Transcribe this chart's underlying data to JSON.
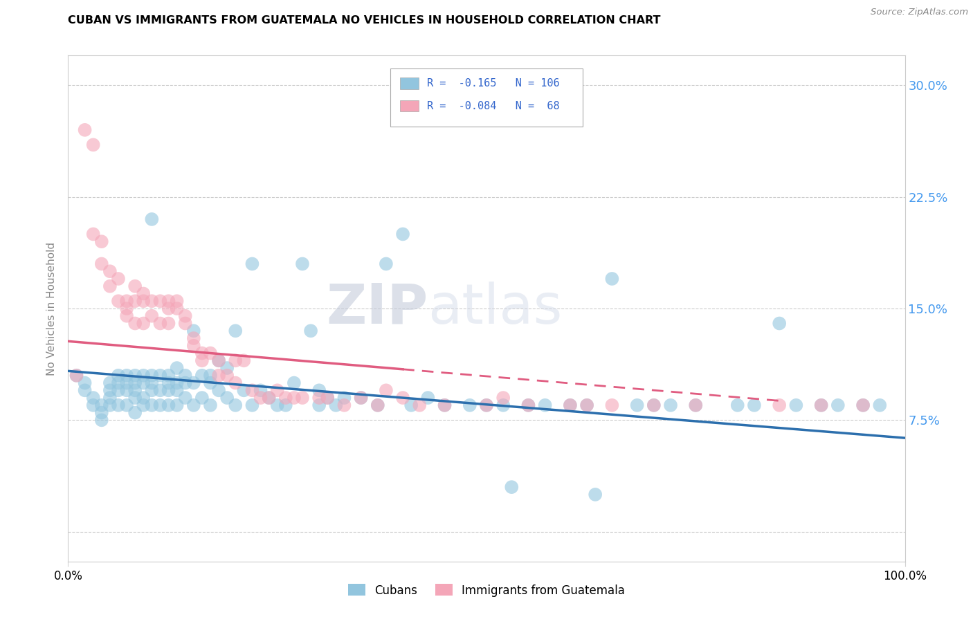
{
  "title": "CUBAN VS IMMIGRANTS FROM GUATEMALA NO VEHICLES IN HOUSEHOLD CORRELATION CHART",
  "source": "Source: ZipAtlas.com",
  "ylabel": "No Vehicles in Household",
  "ytick_vals": [
    0.0,
    0.075,
    0.15,
    0.225,
    0.3
  ],
  "ytick_labels_right": [
    "",
    "7.5%",
    "15.0%",
    "22.5%",
    "30.0%"
  ],
  "xlim": [
    0.0,
    1.0
  ],
  "ylim": [
    -0.02,
    0.32
  ],
  "color_blue": "#92c5de",
  "color_pink": "#f4a6b8",
  "line_blue": "#2c6fad",
  "line_pink": "#e05c80",
  "watermark_zip": "ZIP",
  "watermark_atlas": "atlas",
  "blue_trend_x0": 0.0,
  "blue_trend_x1": 1.0,
  "blue_trend_y0": 0.108,
  "blue_trend_y1": 0.063,
  "pink_trend_x0": 0.0,
  "pink_trend_x1": 0.85,
  "pink_trend_y0": 0.128,
  "pink_trend_y1": 0.088,
  "cubans_x": [
    0.01,
    0.02,
    0.02,
    0.03,
    0.03,
    0.04,
    0.04,
    0.04,
    0.05,
    0.05,
    0.05,
    0.05,
    0.06,
    0.06,
    0.06,
    0.06,
    0.07,
    0.07,
    0.07,
    0.07,
    0.08,
    0.08,
    0.08,
    0.08,
    0.08,
    0.09,
    0.09,
    0.09,
    0.09,
    0.1,
    0.1,
    0.1,
    0.1,
    0.1,
    0.11,
    0.11,
    0.11,
    0.12,
    0.12,
    0.12,
    0.12,
    0.13,
    0.13,
    0.13,
    0.13,
    0.14,
    0.14,
    0.14,
    0.15,
    0.15,
    0.15,
    0.16,
    0.16,
    0.17,
    0.17,
    0.17,
    0.18,
    0.18,
    0.19,
    0.19,
    0.2,
    0.2,
    0.21,
    0.22,
    0.22,
    0.23,
    0.24,
    0.25,
    0.26,
    0.27,
    0.28,
    0.29,
    0.3,
    0.3,
    0.31,
    0.32,
    0.33,
    0.35,
    0.37,
    0.38,
    0.4,
    0.41,
    0.43,
    0.45,
    0.48,
    0.5,
    0.52,
    0.53,
    0.55,
    0.57,
    0.6,
    0.62,
    0.63,
    0.65,
    0.68,
    0.7,
    0.72,
    0.75,
    0.8,
    0.82,
    0.85,
    0.87,
    0.9,
    0.92,
    0.95,
    0.97
  ],
  "cubans_y": [
    0.105,
    0.1,
    0.095,
    0.09,
    0.085,
    0.085,
    0.08,
    0.075,
    0.1,
    0.095,
    0.09,
    0.085,
    0.105,
    0.1,
    0.095,
    0.085,
    0.105,
    0.1,
    0.095,
    0.085,
    0.105,
    0.1,
    0.095,
    0.09,
    0.08,
    0.105,
    0.1,
    0.09,
    0.085,
    0.21,
    0.105,
    0.1,
    0.095,
    0.085,
    0.105,
    0.095,
    0.085,
    0.105,
    0.1,
    0.095,
    0.085,
    0.11,
    0.1,
    0.095,
    0.085,
    0.105,
    0.1,
    0.09,
    0.135,
    0.1,
    0.085,
    0.105,
    0.09,
    0.105,
    0.1,
    0.085,
    0.115,
    0.095,
    0.11,
    0.09,
    0.135,
    0.085,
    0.095,
    0.18,
    0.085,
    0.095,
    0.09,
    0.085,
    0.085,
    0.1,
    0.18,
    0.135,
    0.095,
    0.085,
    0.09,
    0.085,
    0.09,
    0.09,
    0.085,
    0.18,
    0.2,
    0.085,
    0.09,
    0.085,
    0.085,
    0.085,
    0.085,
    0.03,
    0.085,
    0.085,
    0.085,
    0.085,
    0.025,
    0.17,
    0.085,
    0.085,
    0.085,
    0.085,
    0.085,
    0.085,
    0.14,
    0.085,
    0.085,
    0.085,
    0.085,
    0.085
  ],
  "guatemala_x": [
    0.01,
    0.02,
    0.03,
    0.03,
    0.04,
    0.04,
    0.05,
    0.05,
    0.06,
    0.06,
    0.07,
    0.07,
    0.07,
    0.08,
    0.08,
    0.08,
    0.09,
    0.09,
    0.09,
    0.1,
    0.1,
    0.11,
    0.11,
    0.12,
    0.12,
    0.12,
    0.13,
    0.13,
    0.14,
    0.14,
    0.15,
    0.15,
    0.16,
    0.16,
    0.17,
    0.18,
    0.18,
    0.19,
    0.2,
    0.2,
    0.21,
    0.22,
    0.23,
    0.24,
    0.25,
    0.26,
    0.27,
    0.28,
    0.3,
    0.31,
    0.33,
    0.35,
    0.37,
    0.38,
    0.4,
    0.42,
    0.45,
    0.5,
    0.52,
    0.55,
    0.6,
    0.62,
    0.65,
    0.7,
    0.75,
    0.85,
    0.9,
    0.95
  ],
  "guatemala_y": [
    0.105,
    0.27,
    0.26,
    0.2,
    0.195,
    0.18,
    0.175,
    0.165,
    0.17,
    0.155,
    0.155,
    0.15,
    0.145,
    0.165,
    0.155,
    0.14,
    0.16,
    0.155,
    0.14,
    0.155,
    0.145,
    0.155,
    0.14,
    0.155,
    0.15,
    0.14,
    0.155,
    0.15,
    0.145,
    0.14,
    0.13,
    0.125,
    0.12,
    0.115,
    0.12,
    0.105,
    0.115,
    0.105,
    0.115,
    0.1,
    0.115,
    0.095,
    0.09,
    0.09,
    0.095,
    0.09,
    0.09,
    0.09,
    0.09,
    0.09,
    0.085,
    0.09,
    0.085,
    0.095,
    0.09,
    0.085,
    0.085,
    0.085,
    0.09,
    0.085,
    0.085,
    0.085,
    0.085,
    0.085,
    0.085,
    0.085,
    0.085,
    0.085
  ]
}
